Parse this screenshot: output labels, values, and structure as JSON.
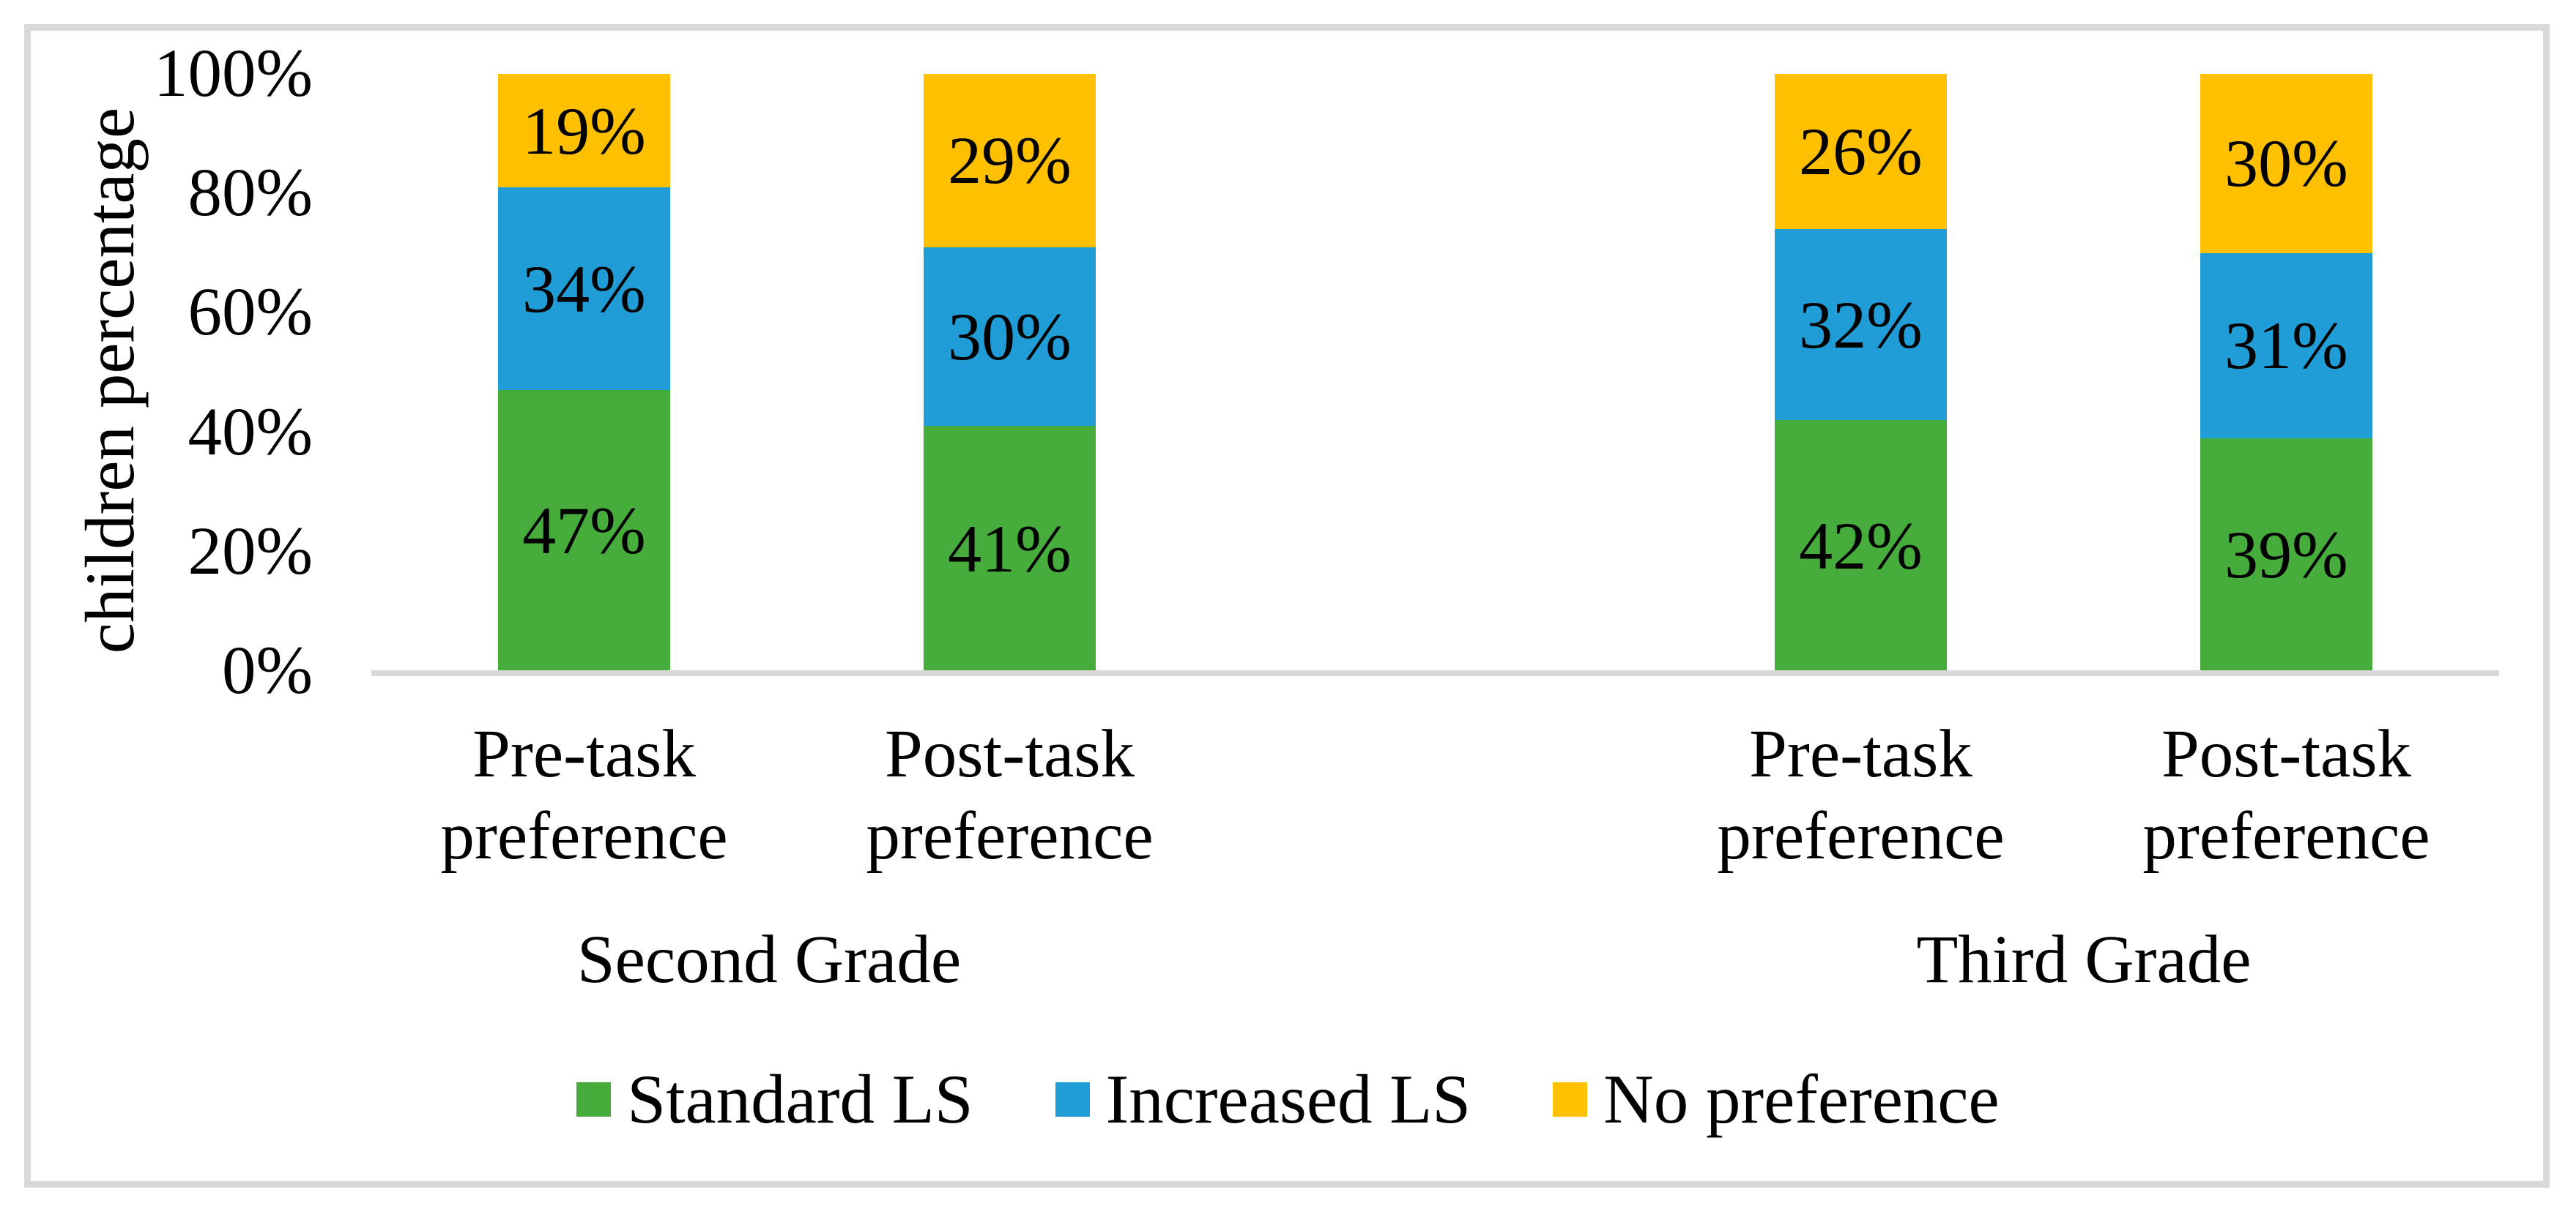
{
  "chart_data": {
    "type": "bar",
    "stacked": true,
    "ylabel": "children percentage",
    "yticks": [
      "0%",
      "20%",
      "40%",
      "60%",
      "80%",
      "100%"
    ],
    "ylim": [
      0,
      100
    ],
    "grid": false,
    "legend_position": "bottom",
    "value_suffix": "%",
    "categories": [
      {
        "label": "Pre-task\npreference",
        "group_index": 0
      },
      {
        "label": "Post-task\npreference",
        "group_index": 0
      },
      {
        "label": "Pre-task\npreference",
        "group_index": 1
      },
      {
        "label": "Post-task\npreference",
        "group_index": 1
      }
    ],
    "groups": [
      "Second Grade",
      "Third Grade"
    ],
    "series": [
      {
        "name": "Standard LS",
        "color": "#46AD3C",
        "values": [
          47,
          41,
          42,
          39
        ]
      },
      {
        "name": "Increased LS",
        "color": "#209CD6",
        "values": [
          34,
          30,
          32,
          31
        ]
      },
      {
        "name": "No preference",
        "color": "#FFC000",
        "values": [
          19,
          29,
          26,
          30
        ]
      }
    ]
  },
  "style": {
    "frame_color": "#D9D9D9",
    "axis_color": "#D9D9D9",
    "text_color": "#000000",
    "background": "#FFFFFF"
  }
}
